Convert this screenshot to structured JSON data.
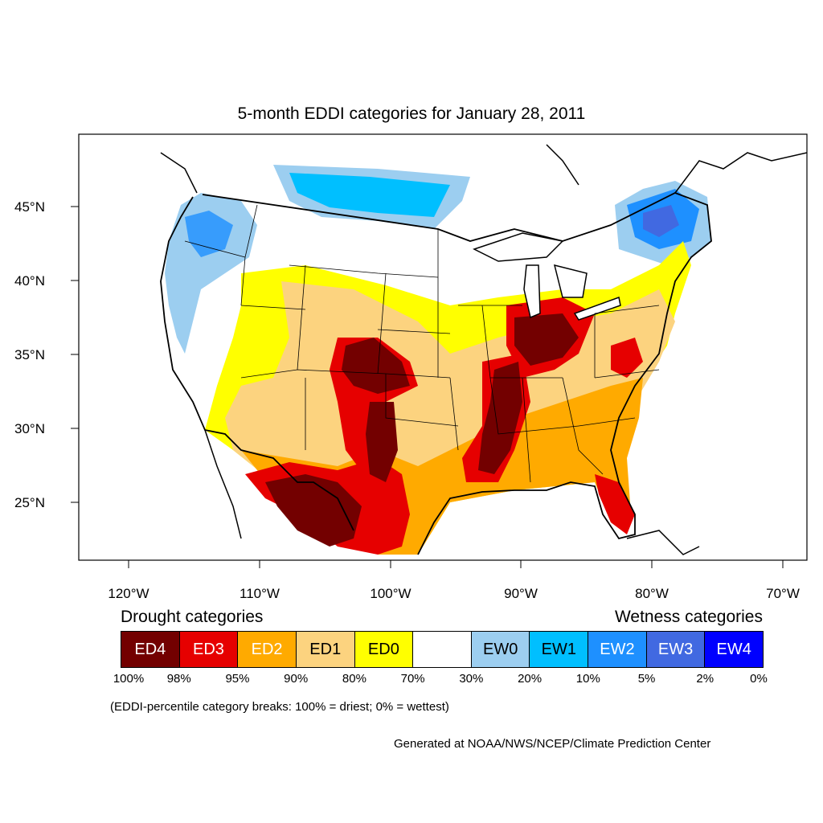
{
  "title": "5-month EDDI categories for January 28, 2011",
  "lat_ticks": [
    "45°N",
    "40°N",
    "35°N",
    "30°N",
    "25°N"
  ],
  "lon_ticks": [
    "120°W",
    "110°W",
    "100°W",
    "90°W",
    "80°W",
    "70°W"
  ],
  "legend": {
    "drought_heading": "Drought categories",
    "wetness_heading": "Wetness categories",
    "categories": [
      {
        "label": "ED4",
        "color": "#730000",
        "text_color": "#ffffff"
      },
      {
        "label": "ED3",
        "color": "#e60000",
        "text_color": "#ffffff"
      },
      {
        "label": "ED2",
        "color": "#ffaa00",
        "text_color": "#ffffff"
      },
      {
        "label": "ED1",
        "color": "#fcd37f",
        "text_color": "#000000"
      },
      {
        "label": "ED0",
        "color": "#ffff00",
        "text_color": "#000000"
      },
      {
        "label": "",
        "color": "#ffffff",
        "text_color": "#000000"
      },
      {
        "label": "EW0",
        "color": "#9ccef0",
        "text_color": "#000000"
      },
      {
        "label": "EW1",
        "color": "#00bfff",
        "text_color": "#000000"
      },
      {
        "label": "EW2",
        "color": "#1e90ff",
        "text_color": "#ffffff"
      },
      {
        "label": "EW3",
        "color": "#4169e1",
        "text_color": "#ffffff"
      },
      {
        "label": "EW4",
        "color": "#0000ff",
        "text_color": "#ffffff"
      }
    ],
    "breaks": [
      "100%",
      "98%",
      "95%",
      "90%",
      "80%",
      "70%",
      "30%",
      "20%",
      "10%",
      "5%",
      "2%",
      "0%"
    ]
  },
  "note": "(EDDI-percentile category breaks: 100% = driest; 0% = wettest)",
  "credit": "Generated at NOAA/NWS/NCEP/Climate Prediction Center"
}
